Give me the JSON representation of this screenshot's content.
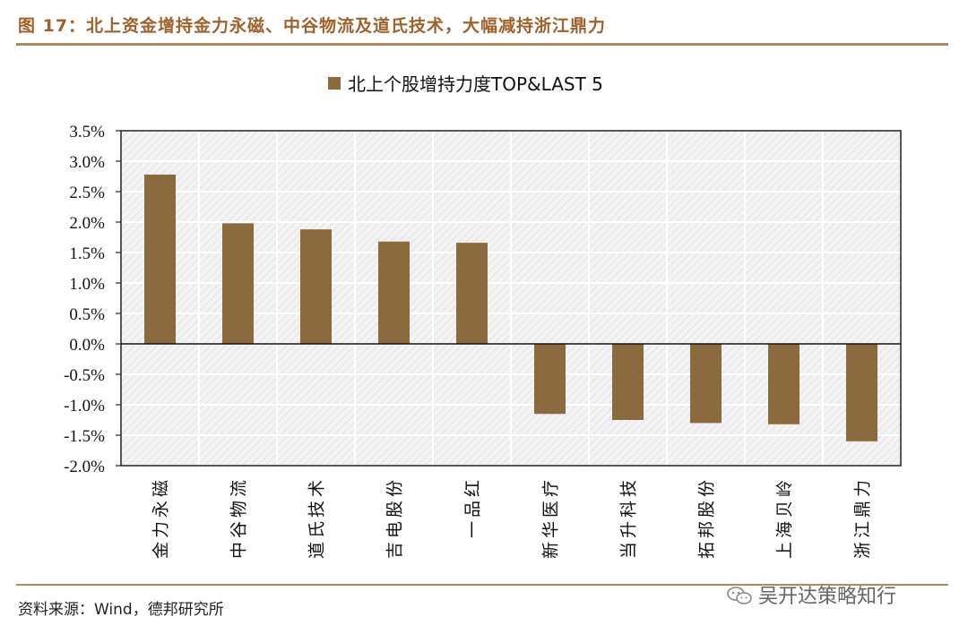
{
  "figure": {
    "title": "图 17：北上资金增持金力永磁、中谷物流及道氏技术，大幅减持浙江鼎力",
    "source": "资料来源：Wind，德邦研究所",
    "watermark": "吴开达策略知行"
  },
  "colors": {
    "bar": "#8b6a3e",
    "title": "#a0612a",
    "rule": "#b08a5e"
  },
  "chart_data": {
    "type": "bar",
    "categories": [
      "金力永磁",
      "中谷物流",
      "道氏技术",
      "吉电股份",
      "一品红",
      "新华医疗",
      "当升科技",
      "拓邦股份",
      "上海贝岭",
      "浙江鼎力"
    ],
    "series": [
      {
        "name": "北上个股增持力度TOP&LAST 5",
        "values": [
          2.78,
          1.98,
          1.88,
          1.68,
          1.66,
          -1.15,
          -1.25,
          -1.3,
          -1.32,
          -1.6
        ]
      }
    ],
    "ylim": [
      -2.0,
      3.5
    ],
    "yticks": [
      "3.5%",
      "3.0%",
      "2.5%",
      "2.0%",
      "1.5%",
      "1.0%",
      "0.5%",
      "0.0%",
      "-0.5%",
      "-1.0%",
      "-1.5%",
      "-2.0%"
    ],
    "unit": "%",
    "grid": true,
    "legend_position": "top-center"
  }
}
